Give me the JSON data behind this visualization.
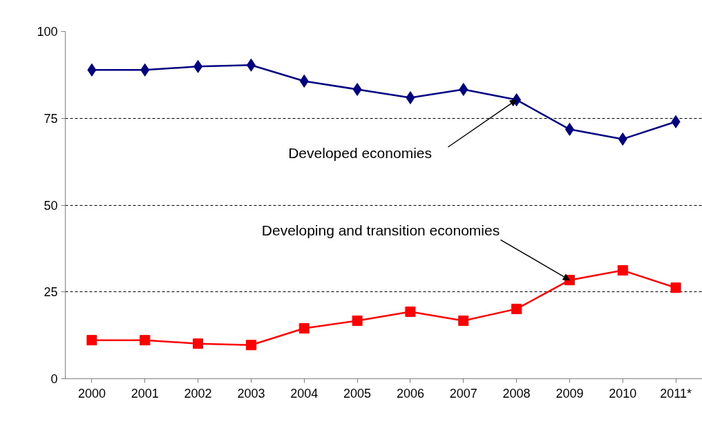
{
  "chart_data": {
    "type": "line",
    "categories": [
      "2000",
      "2001",
      "2002",
      "2003",
      "2004",
      "2005",
      "2006",
      "2007",
      "2008",
      "2009",
      "2010",
      "2011*"
    ],
    "series": [
      {
        "color": "#000080",
        "marker": "diamond",
        "values": [
          88.9,
          88.9,
          89.9,
          90.3,
          85.7,
          83.3,
          80.9,
          83.3,
          80.3,
          71.8,
          69.0,
          74.0
        ]
      },
      {
        "color": "#ff0000",
        "marker": "square",
        "values": [
          11.1,
          11.1,
          10.1,
          9.7,
          14.5,
          16.7,
          19.3,
          16.7,
          20.1,
          28.4,
          31.2,
          26.2
        ]
      }
    ],
    "ylim": [
      0,
      100
    ],
    "yticks": [
      0,
      25,
      50,
      75,
      100
    ],
    "grid": "y",
    "line_style": "solid",
    "annotations": [
      {
        "text": "Developed economies",
        "x": "2008",
        "y": 80.3
      },
      {
        "text": "Developing and transition economies",
        "x": "2009",
        "y": 28.4
      }
    ]
  }
}
